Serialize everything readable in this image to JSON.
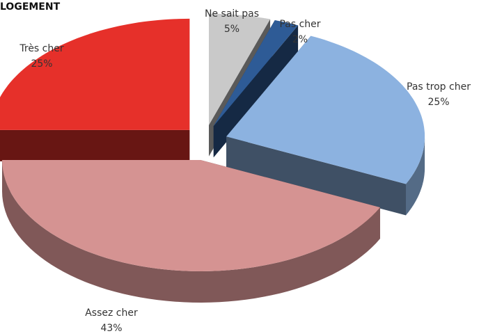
{
  "chart_data": {
    "type": "pie",
    "title": "LOGEMENT",
    "categories": [
      "Ne sait pas",
      "Pas cher",
      "Pas trop cher",
      "Assez cher",
      "Très cher"
    ],
    "values": [
      5,
      2,
      25,
      43,
      25
    ],
    "value_labels": [
      "5%",
      "2%",
      "25%",
      "43%",
      "25%"
    ],
    "colors": [
      "#c9c9c9",
      "#2e5b96",
      "#8cb2e0",
      "#d59392",
      "#e6302a"
    ]
  }
}
